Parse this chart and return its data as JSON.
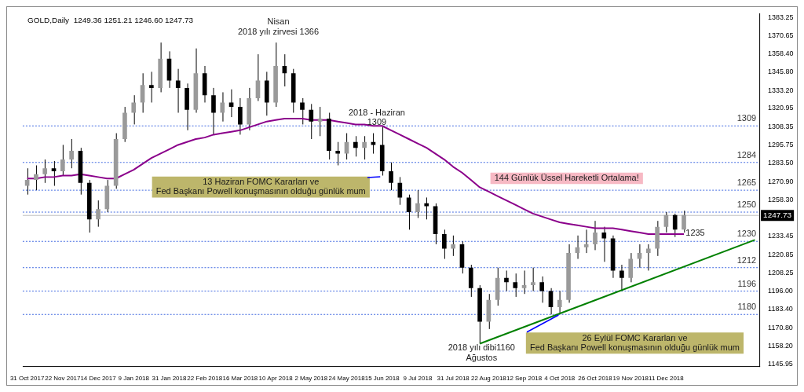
{
  "chart_data": {
    "type": "candlestick",
    "title": "GOLD,Daily  1249.36 1251.21 1246.60 1247.73",
    "categories": [
      "31 Oct 2017",
      null,
      null,
      null,
      "22 Nov 2017",
      null,
      null,
      null,
      "14 Dec 2017",
      null,
      null,
      null,
      "9 Jan 2018",
      null,
      null,
      null,
      "31 Jan 2018",
      null,
      null,
      null,
      "22 Feb 2018",
      null,
      null,
      null,
      "16 Mar 2018",
      null,
      null,
      null,
      "10 Apr 2018",
      null,
      null,
      null,
      "2 May 2018",
      null,
      null,
      null,
      "24 May 2018",
      null,
      null,
      null,
      "15 Jun 2018",
      null,
      null,
      null,
      "9 Jul 2018",
      null,
      null,
      null,
      "31 Jul 2018",
      null,
      null,
      null,
      "22 Aug 2018",
      null,
      null,
      null,
      "12 Sep 2018",
      null,
      null,
      null,
      "4 Oct 2018",
      null,
      null,
      null,
      "26 Oct 2018",
      null,
      null,
      null,
      "19 Nov 2018",
      null,
      null,
      null,
      "11 Dec 2018",
      null,
      null,
      null,
      null,
      null,
      null,
      null,
      null,
      null,
      null
    ],
    "ohlc": [
      [
        1268,
        1280,
        1262,
        1272
      ],
      [
        1272,
        1282,
        1265,
        1276
      ],
      [
        1276,
        1286,
        1270,
        1280
      ],
      [
        1280,
        1285,
        1268,
        1278
      ],
      [
        1278,
        1296,
        1275,
        1286
      ],
      [
        1286,
        1300,
        1280,
        1292
      ],
      [
        1292,
        1294,
        1262,
        1270
      ],
      [
        1270,
        1272,
        1236,
        1245
      ],
      [
        1245,
        1258,
        1240,
        1252
      ],
      [
        1252,
        1272,
        1250,
        1268
      ],
      [
        1268,
        1304,
        1266,
        1300
      ],
      [
        1300,
        1322,
        1298,
        1318
      ],
      [
        1318,
        1330,
        1310,
        1325
      ],
      [
        1325,
        1345,
        1318,
        1337
      ],
      [
        1337,
        1346,
        1325,
        1335
      ],
      [
        1335,
        1366,
        1332,
        1355
      ],
      [
        1355,
        1360,
        1335,
        1340
      ],
      [
        1340,
        1348,
        1318,
        1335
      ],
      [
        1335,
        1338,
        1306,
        1320
      ],
      [
        1320,
        1362,
        1318,
        1345
      ],
      [
        1345,
        1350,
        1325,
        1330
      ],
      [
        1330,
        1335,
        1303,
        1318
      ],
      [
        1318,
        1332,
        1312,
        1325
      ],
      [
        1325,
        1334,
        1315,
        1322
      ],
      [
        1322,
        1328,
        1303,
        1310
      ],
      [
        1310,
        1335,
        1306,
        1328
      ],
      [
        1328,
        1358,
        1326,
        1340
      ],
      [
        1340,
        1346,
        1316,
        1325
      ],
      [
        1325,
        1366,
        1322,
        1350
      ],
      [
        1350,
        1358,
        1336,
        1345
      ],
      [
        1345,
        1348,
        1318,
        1325
      ],
      [
        1325,
        1328,
        1310,
        1320
      ],
      [
        1320,
        1324,
        1300,
        1312
      ],
      [
        1312,
        1322,
        1302,
        1314
      ],
      [
        1314,
        1318,
        1286,
        1292
      ],
      [
        1292,
        1298,
        1282,
        1290
      ],
      [
        1290,
        1304,
        1286,
        1298
      ],
      [
        1298,
        1302,
        1288,
        1294
      ],
      [
        1294,
        1302,
        1286,
        1298
      ],
      [
        1298,
        1304,
        1290,
        1296
      ],
      [
        1296,
        1309,
        1275,
        1278
      ],
      [
        1278,
        1284,
        1265,
        1270
      ],
      [
        1270,
        1274,
        1255,
        1260
      ],
      [
        1260,
        1262,
        1238,
        1250
      ],
      [
        1250,
        1265,
        1246,
        1256
      ],
      [
        1256,
        1260,
        1245,
        1254
      ],
      [
        1254,
        1256,
        1228,
        1235
      ],
      [
        1235,
        1238,
        1218,
        1225
      ],
      [
        1225,
        1234,
        1220,
        1228
      ],
      [
        1228,
        1230,
        1208,
        1212
      ],
      [
        1212,
        1214,
        1192,
        1198
      ],
      [
        1198,
        1200,
        1160,
        1175
      ],
      [
        1175,
        1194,
        1170,
        1190
      ],
      [
        1190,
        1212,
        1186,
        1205
      ],
      [
        1205,
        1210,
        1196,
        1202
      ],
      [
        1202,
        1208,
        1192,
        1198
      ],
      [
        1198,
        1210,
        1194,
        1200
      ],
      [
        1200,
        1212,
        1196,
        1202
      ],
      [
        1202,
        1206,
        1188,
        1196
      ],
      [
        1196,
        1198,
        1180,
        1185
      ],
      [
        1185,
        1196,
        1181,
        1190
      ],
      [
        1190,
        1228,
        1188,
        1222
      ],
      [
        1222,
        1234,
        1218,
        1226
      ],
      [
        1226,
        1238,
        1222,
        1228
      ],
      [
        1228,
        1244,
        1224,
        1236
      ],
      [
        1236,
        1240,
        1216,
        1232
      ],
      [
        1232,
        1234,
        1205,
        1210
      ],
      [
        1210,
        1214,
        1196,
        1205
      ],
      [
        1205,
        1222,
        1202,
        1218
      ],
      [
        1218,
        1228,
        1212,
        1222
      ],
      [
        1222,
        1228,
        1210,
        1225
      ],
      [
        1225,
        1244,
        1220,
        1240
      ],
      [
        1240,
        1250,
        1236,
        1248
      ],
      [
        1248,
        1249,
        1233,
        1238
      ],
      [
        1238,
        1251,
        1236,
        1248
      ],
      null,
      null,
      null,
      null,
      null,
      null,
      null,
      null
    ],
    "series": [
      {
        "type": "line",
        "color": "#8b008b",
        "values": [
          1273,
          1273,
          1274,
          1274,
          1275,
          1275,
          1276,
          1275,
          1274,
          1273,
          1273,
          1276,
          1279,
          1283,
          1287,
          1290,
          1293,
          1296,
          1298,
          1300,
          1301,
          1303,
          1304,
          1305,
          1306,
          1308,
          1310,
          1312,
          1313,
          1314,
          1314,
          1314,
          1313,
          1313,
          1313,
          1312,
          1311,
          1310,
          1310,
          1309,
          1309,
          1306,
          1303,
          1300,
          1297,
          1294,
          1290,
          1286,
          1281,
          1277,
          1272,
          1267,
          1264,
          1261,
          1258,
          1255,
          1252,
          1249,
          1247,
          1245,
          1243,
          1242,
          1241,
          1240,
          1239,
          1239,
          1239,
          1238,
          1237,
          1236,
          1235,
          1235,
          1235,
          1235,
          1235,
          null,
          null,
          null,
          null,
          null,
          null,
          null,
          null
        ]
      },
      {
        "type": "line",
        "color": "#008000",
        "values": [
          null,
          null,
          null,
          null,
          null,
          null,
          null,
          null,
          null,
          null,
          null,
          null,
          null,
          null,
          null,
          null,
          null,
          null,
          null,
          null,
          null,
          null,
          null,
          null,
          null,
          null,
          null,
          null,
          null,
          null,
          null,
          null,
          null,
          null,
          null,
          null,
          null,
          null,
          null,
          null,
          null,
          null,
          null,
          null,
          null,
          null,
          null,
          null,
          null,
          null,
          null,
          1160,
          null,
          null,
          null,
          null,
          null,
          null,
          null,
          null,
          null,
          null,
          null,
          null,
          null,
          null,
          null,
          null,
          null,
          null,
          null,
          null,
          null,
          null,
          null,
          null,
          null,
          null,
          null,
          null,
          null,
          null,
          1231
        ]
      }
    ],
    "ylim": [
      1144.4,
      1385.8
    ],
    "yticks": [
      1145.95,
      {
        "value": 1158.2,
        "label": "1158.20"
      },
      {
        "value": 1170.8,
        "label": "1170.80"
      },
      {
        "value": 1183.4,
        "label": "1183.40"
      },
      {
        "value": 1196,
        "label": "1196.00"
      },
      1208.25,
      1220.85,
      1233.45,
      {
        "value": 1258.3,
        "label": "1258.30"
      },
      {
        "value": 1270.9,
        "label": "1270.90"
      },
      {
        "value": 1283.5,
        "label": "1283.50"
      },
      1295.75,
      1308.35,
      1320.95,
      {
        "value": 1333.2,
        "label": "1333.20"
      },
      {
        "value": 1345.8,
        "label": "1345.80"
      },
      {
        "value": 1358.4,
        "label": "1358.40"
      },
      1370.65,
      1383.25
    ],
    "ref_lines": [
      {
        "axis": "y",
        "value": 1309,
        "label": "1309",
        "color": "#4169e1",
        "line_style": "dotted"
      },
      {
        "axis": "y",
        "value": 1284,
        "label": "1284",
        "color": "#4169e1",
        "line_style": "dotted"
      },
      {
        "axis": "y",
        "value": 1265,
        "label": "1265",
        "color": "#4169e1",
        "line_style": "dotted"
      },
      {
        "axis": "y",
        "value": 1250,
        "label": "1250",
        "color": "#4169e1",
        "line_style": "dotted"
      },
      {
        "axis": "y",
        "value": 1230,
        "label": "1230",
        "color": "#4169e1",
        "line_style": "dotted"
      },
      {
        "axis": "y",
        "value": 1212,
        "label": "1212",
        "color": "#4169e1",
        "line_style": "dotted"
      },
      {
        "axis": "y",
        "value": 1196,
        "label": "1196",
        "color": "#4169e1",
        "line_style": "dotted"
      },
      {
        "axis": "y",
        "value": 1180,
        "label": "1180",
        "color": "#4169e1",
        "line_style": "dotted"
      },
      {
        "axis": "y",
        "value": 1247.73,
        "label": "1247.73",
        "color": "#c0c0c0",
        "line_style": "solid"
      }
    ],
    "annotations": [
      "Nisan\n2018 yılı zirvesi 1366",
      "2018 - Haziran\n1309",
      {
        "text": "13 Haziran FOMC Kararları ve\nFed Başkanı Powell konuşmasının olduğu günlük mum",
        "x": "15 Jun 2018",
        "y": 1275
      },
      "144 Günlük Üssel Hareketli Ortalama!",
      "1235",
      "2018 yılı dibi1160\nAğustos",
      {
        "text": "26 Eylül FOMC Kararları ve\nFed Başkanı Powell konuşmasının olduğu günlük mum",
        "x": "4 Oct 2018",
        "y": 1181
      }
    ]
  }
}
